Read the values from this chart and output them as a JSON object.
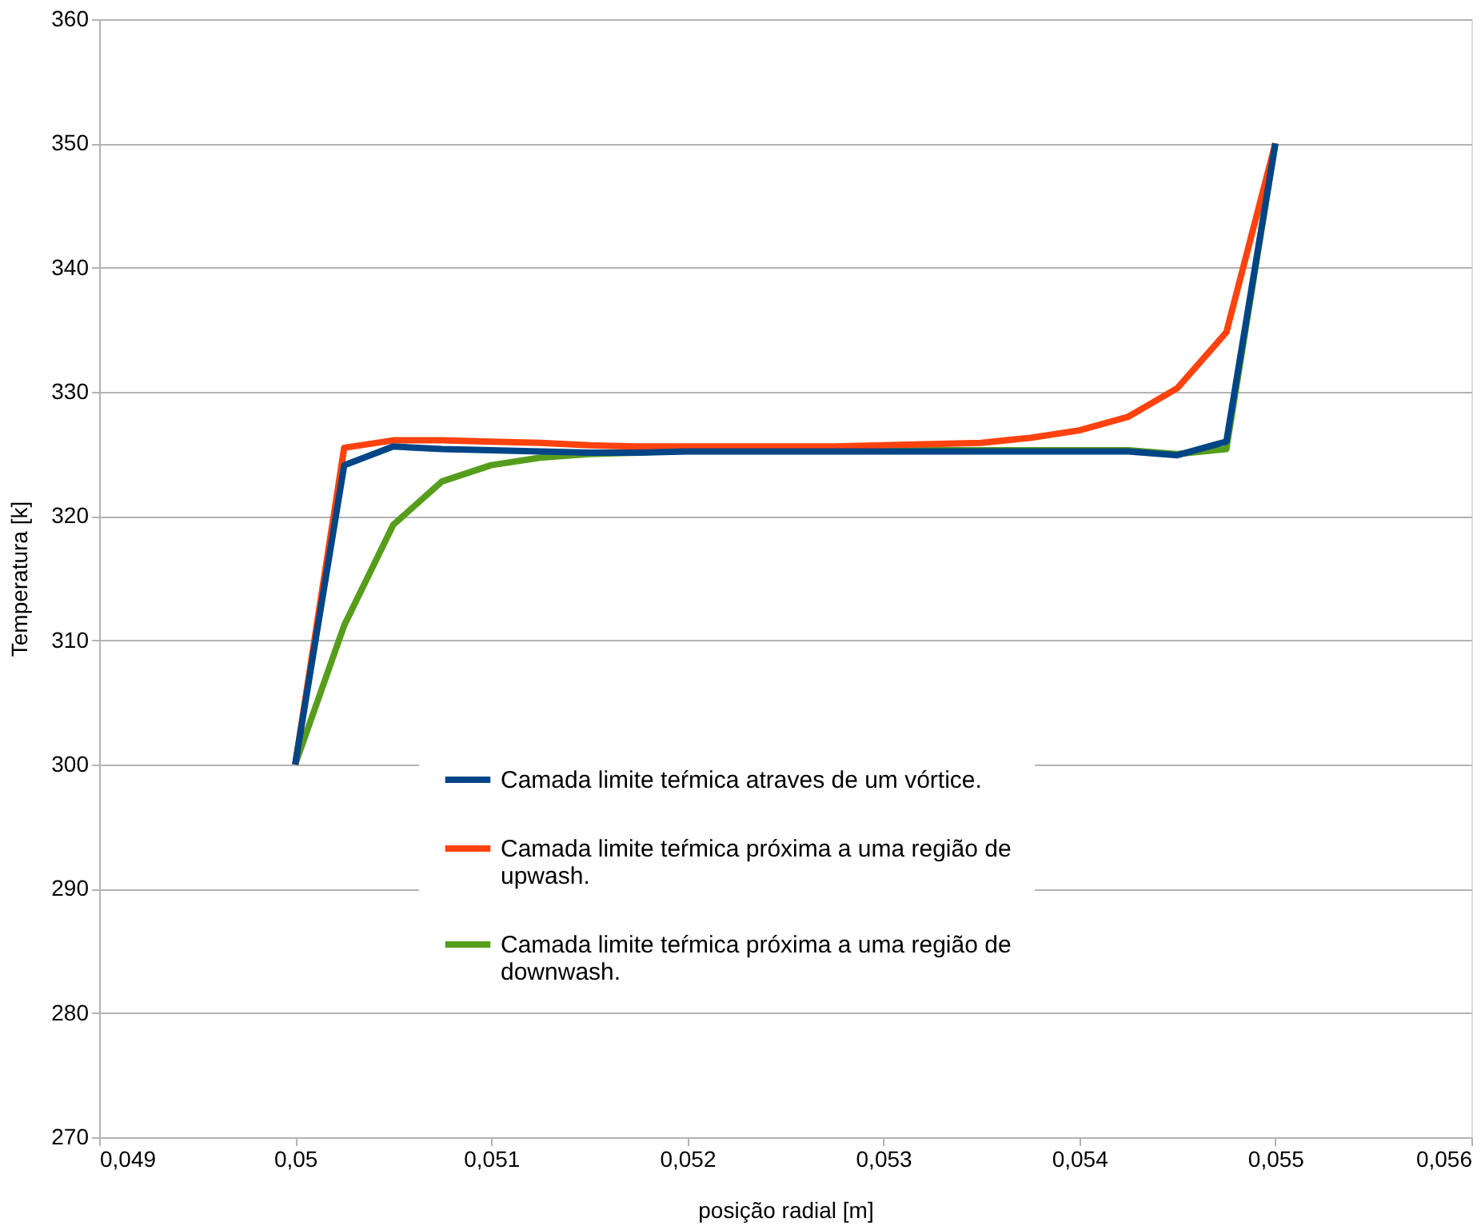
{
  "chart_data": {
    "type": "line",
    "xlabel": "posição radial [m]",
    "ylabel": "Temperatura [k]",
    "x": [
      0.05,
      0.05025,
      0.0505,
      0.05075,
      0.051,
      0.05125,
      0.0515,
      0.05175,
      0.052,
      0.05225,
      0.0525,
      0.05275,
      0.053,
      0.05325,
      0.0535,
      0.05375,
      0.054,
      0.05425,
      0.0545,
      0.05475,
      0.055
    ],
    "series": [
      {
        "name": "Camada limite teŕmica atraves de um vórtice.",
        "color": "#004586",
        "values": [
          300,
          324.1,
          325.6,
          325.4,
          325.3,
          325.2,
          325.1,
          325.1,
          325.2,
          325.2,
          325.2,
          325.2,
          325.2,
          325.2,
          325.2,
          325.2,
          325.2,
          325.2,
          324.9,
          326,
          350
        ]
      },
      {
        "name": "Camada limite teŕmica próxima a uma região de upwash.",
        "color": "#ff420e",
        "values": [
          300,
          325.5,
          326.1,
          326.1,
          326.0,
          325.9,
          325.7,
          325.6,
          325.6,
          325.6,
          325.6,
          325.6,
          325.7,
          325.8,
          325.9,
          326.3,
          326.9,
          328.0,
          330.3,
          334.8,
          350
        ]
      },
      {
        "name": "Camada limite teŕmica próxima a uma região de downwash.",
        "color": "#579d1c",
        "values": [
          300,
          311.2,
          319.3,
          322.8,
          324.1,
          324.7,
          325.0,
          325.1,
          325.3,
          325.3,
          325.3,
          325.3,
          325.3,
          325.3,
          325.3,
          325.3,
          325.3,
          325.3,
          325.0,
          325.4,
          350
        ]
      }
    ],
    "xlim": [
      0.049,
      0.056
    ],
    "xticks": [
      {
        "value": 0.049,
        "label": "0,049"
      },
      {
        "value": 0.05,
        "label": "0,05"
      },
      {
        "value": 0.051,
        "label": "0,051"
      },
      {
        "value": 0.052,
        "label": "0,052"
      },
      {
        "value": 0.053,
        "label": "0,053"
      },
      {
        "value": 0.054,
        "label": "0,054"
      },
      {
        "value": 0.055,
        "label": "0,055"
      },
      {
        "value": 0.056,
        "label": "0,056"
      }
    ],
    "ylim": [
      270,
      360
    ],
    "yticks": [
      270,
      280,
      290,
      300,
      310,
      320,
      330,
      340,
      350,
      360
    ],
    "grid": "y",
    "legend": "bottom right",
    "marker": "none",
    "line_style": "solid"
  }
}
